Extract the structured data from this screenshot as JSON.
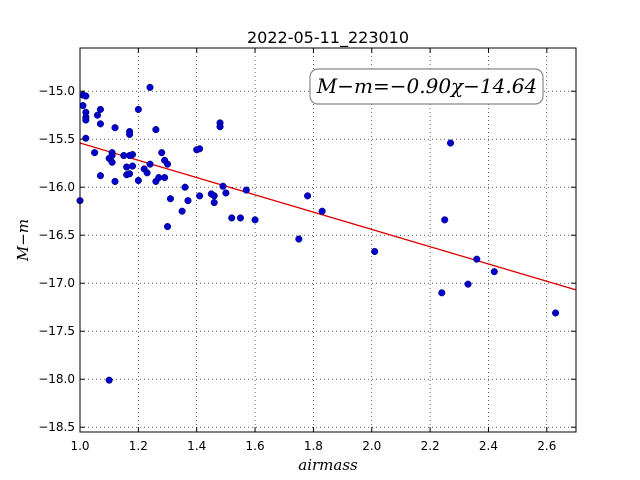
{
  "chart_data": {
    "type": "scatter",
    "title": "2022-05-11_223010",
    "xlabel": "airmass",
    "ylabel": "M−m",
    "xlim": [
      1.0,
      2.7
    ],
    "ylim": [
      -18.55,
      -14.55
    ],
    "y_inverted": true,
    "grid": true,
    "grid_style": "dotted",
    "xticks": [
      1.0,
      1.2,
      1.4,
      1.6,
      1.8,
      2.0,
      2.2,
      2.4,
      2.6
    ],
    "xtick_labels": [
      "1.0",
      "1.2",
      "1.4",
      "1.6",
      "1.8",
      "2.0",
      "2.2",
      "2.4",
      "2.6"
    ],
    "yticks": [
      -15.0,
      -15.5,
      -16.0,
      -16.5,
      -17.0,
      -17.5,
      -18.0,
      -18.5
    ],
    "ytick_labels": [
      "−15.0",
      "−15.5",
      "−16.0",
      "−16.5",
      "−17.0",
      "−17.5",
      "−18.0",
      "−18.5"
    ],
    "annotation": "M−m=−0.90χ−14.64",
    "point_color": "#0000cc",
    "fit_color": "#dd0000",
    "fit": {
      "slope": -0.9,
      "intercept": -14.64
    },
    "points": [
      [
        1.0,
        -16.14
      ],
      [
        1.01,
        -15.04
      ],
      [
        1.02,
        -15.05
      ],
      [
        1.01,
        -15.15
      ],
      [
        1.02,
        -15.22
      ],
      [
        1.02,
        -15.27
      ],
      [
        1.02,
        -15.3
      ],
      [
        1.02,
        -15.49
      ],
      [
        1.05,
        -15.64
      ],
      [
        1.06,
        -15.25
      ],
      [
        1.07,
        -15.19
      ],
      [
        1.07,
        -15.34
      ],
      [
        1.07,
        -15.88
      ],
      [
        1.1,
        -15.7
      ],
      [
        1.11,
        -15.64
      ],
      [
        1.11,
        -15.67
      ],
      [
        1.11,
        -15.74
      ],
      [
        1.12,
        -15.38
      ],
      [
        1.12,
        -15.94
      ],
      [
        1.1,
        -18.01
      ],
      [
        1.15,
        -15.67
      ],
      [
        1.16,
        -15.79
      ],
      [
        1.16,
        -15.87
      ],
      [
        1.17,
        -15.86
      ],
      [
        1.17,
        -15.42
      ],
      [
        1.17,
        -15.45
      ],
      [
        1.17,
        -15.67
      ],
      [
        1.18,
        -15.66
      ],
      [
        1.18,
        -15.78
      ],
      [
        1.2,
        -15.19
      ],
      [
        1.2,
        -15.93
      ],
      [
        1.22,
        -15.81
      ],
      [
        1.23,
        -15.85
      ],
      [
        1.24,
        -14.96
      ],
      [
        1.24,
        -15.76
      ],
      [
        1.26,
        -15.4
      ],
      [
        1.26,
        -15.94
      ],
      [
        1.27,
        -15.9
      ],
      [
        1.28,
        -15.64
      ],
      [
        1.29,
        -15.9
      ],
      [
        1.29,
        -15.72
      ],
      [
        1.3,
        -15.76
      ],
      [
        1.3,
        -16.41
      ],
      [
        1.31,
        -16.12
      ],
      [
        1.35,
        -16.25
      ],
      [
        1.36,
        -16.0
      ],
      [
        1.37,
        -16.14
      ],
      [
        1.4,
        -15.61
      ],
      [
        1.41,
        -15.6
      ],
      [
        1.41,
        -16.09
      ],
      [
        1.45,
        -16.07
      ],
      [
        1.46,
        -16.09
      ],
      [
        1.46,
        -16.16
      ],
      [
        1.48,
        -15.33
      ],
      [
        1.48,
        -15.37
      ],
      [
        1.49,
        -15.99
      ],
      [
        1.5,
        -16.06
      ],
      [
        1.52,
        -16.32
      ],
      [
        1.55,
        -16.32
      ],
      [
        1.57,
        -16.03
      ],
      [
        1.6,
        -16.34
      ],
      [
        1.75,
        -16.54
      ],
      [
        1.78,
        -16.09
      ],
      [
        1.83,
        -16.25
      ],
      [
        2.01,
        -16.67
      ],
      [
        2.24,
        -17.1
      ],
      [
        2.25,
        -16.34
      ],
      [
        2.27,
        -15.54
      ],
      [
        2.33,
        -17.01
      ],
      [
        2.36,
        -16.75
      ],
      [
        2.42,
        -16.88
      ],
      [
        2.63,
        -17.31
      ]
    ]
  }
}
